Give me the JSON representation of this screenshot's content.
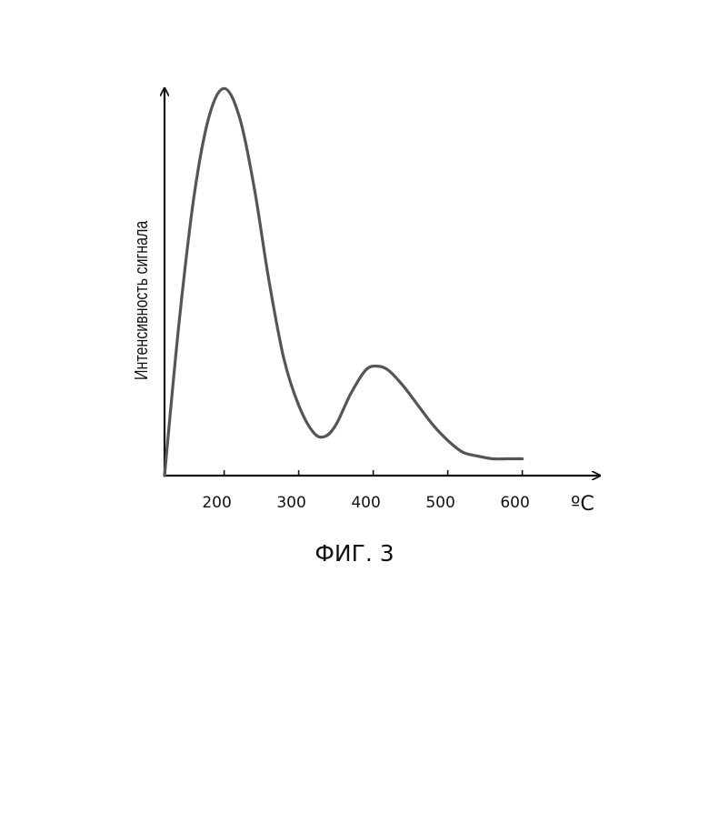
{
  "chart_data": {
    "type": "line",
    "ylabel": "Интенсивность сигнала",
    "xunit": "ºC",
    "x_ticks": [
      "200",
      "300",
      "400",
      "500",
      "600"
    ],
    "x_tick_values": [
      200,
      300,
      400,
      500,
      600
    ],
    "xlim": [
      120,
      700
    ],
    "ylim": [
      0,
      100
    ],
    "grid": false,
    "series": [
      {
        "x": [
          120,
          140,
          160,
          180,
          200,
          220,
          240,
          260,
          280,
          300,
          320,
          335,
          350,
          370,
          390,
          405,
          420,
          440,
          460,
          480,
          500,
          520,
          540,
          560,
          580,
          600
        ],
        "y": [
          0,
          40,
          72,
          92,
          99,
          92,
          74,
          50,
          30,
          18,
          11,
          10,
          13,
          21,
          27,
          28,
          27,
          23,
          18,
          13,
          9,
          6,
          5,
          4.3,
          4.3,
          4.3
        ]
      }
    ]
  },
  "caption": "ФИГ. 3",
  "colors": {
    "curve": "#555555",
    "axis": "#111111"
  }
}
